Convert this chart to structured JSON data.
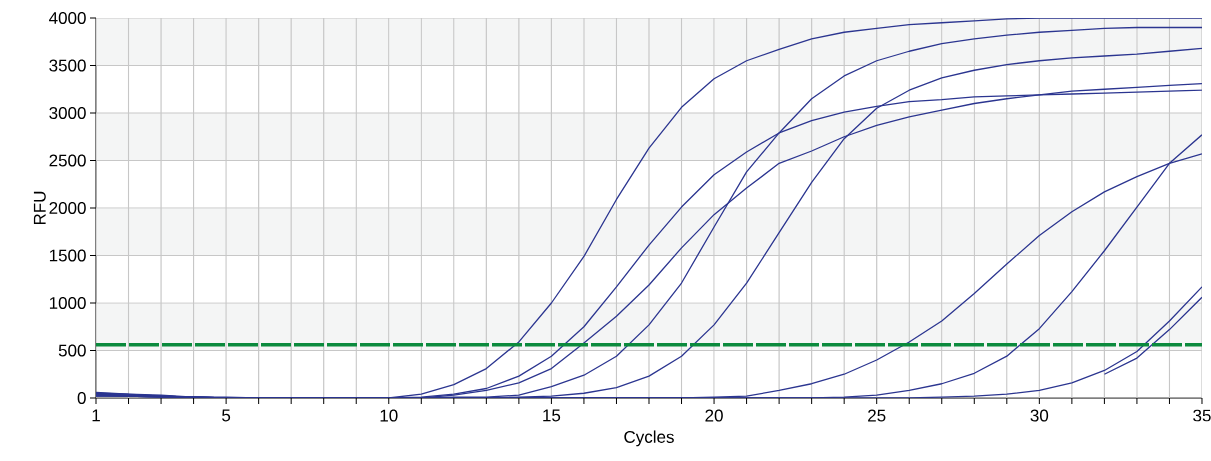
{
  "chart_data": {
    "type": "line",
    "xlabel": "Cycles",
    "ylabel": "RFU",
    "x": [
      1,
      2,
      3,
      4,
      5,
      6,
      7,
      8,
      9,
      10,
      11,
      12,
      13,
      14,
      15,
      16,
      17,
      18,
      19,
      20,
      21,
      22,
      23,
      24,
      25,
      26,
      27,
      28,
      29,
      30,
      31,
      32,
      33,
      34,
      35
    ],
    "xlim": [
      1,
      35
    ],
    "ylim": [
      0,
      4000
    ],
    "xticks": [
      1,
      {
        "value": 2,
        "label": null
      },
      {
        "value": 3,
        "label": null
      },
      {
        "value": 4,
        "label": null
      },
      5,
      {
        "value": 6,
        "label": null
      },
      {
        "value": 7,
        "label": null
      },
      {
        "value": 8,
        "label": null
      },
      {
        "value": 9,
        "label": null
      },
      10,
      {
        "value": 11,
        "label": null
      },
      {
        "value": 12,
        "label": null
      },
      {
        "value": 13,
        "label": null
      },
      {
        "value": 14,
        "label": null
      },
      15,
      {
        "value": 16,
        "label": null
      },
      {
        "value": 17,
        "label": null
      },
      {
        "value": 18,
        "label": null
      },
      {
        "value": 19,
        "label": null
      },
      20,
      {
        "value": 21,
        "label": null
      },
      {
        "value": 22,
        "label": null
      },
      {
        "value": 23,
        "label": null
      },
      {
        "value": 24,
        "label": null
      },
      25,
      {
        "value": 26,
        "label": null
      },
      {
        "value": 27,
        "label": null
      },
      {
        "value": 28,
        "label": null
      },
      {
        "value": 29,
        "label": null
      },
      30,
      {
        "value": 31,
        "label": null
      },
      {
        "value": 32,
        "label": null
      },
      {
        "value": 33,
        "label": null
      },
      {
        "value": 34,
        "label": null
      },
      35
    ],
    "yticks": [
      0,
      500,
      1000,
      1500,
      2000,
      2500,
      3000,
      3500,
      4000
    ],
    "grid": true,
    "legend": false,
    "marker": "none",
    "line_style": "solid",
    "ref_lines": [
      {
        "axis": "y",
        "value": 560,
        "color": "#0b8a3d",
        "line_style": "dashed"
      }
    ],
    "bands": [
      {
        "axis": "y",
        "from": 500,
        "to": 1000,
        "color": "#f4f5f5"
      },
      {
        "axis": "y",
        "from": 1500,
        "to": 2000,
        "color": "#f4f5f5"
      },
      {
        "axis": "y",
        "from": 2500,
        "to": 3000,
        "color": "#f4f5f5"
      },
      {
        "axis": "y",
        "from": 3500,
        "to": 4000,
        "color": "#f4f5f5"
      }
    ],
    "series": [
      {
        "color": "#2b3590",
        "values": [
          50,
          40,
          20,
          10,
          0,
          0,
          0,
          0,
          0,
          0,
          40,
          140,
          310,
          590,
          1000,
          1490,
          2090,
          2630,
          3060,
          3360,
          3550,
          3670,
          3780,
          3850,
          3890,
          3930,
          3950,
          3970,
          3990,
          4000,
          4000,
          4000,
          4000,
          4000,
          4000
        ]
      },
      {
        "color": "#2b3590",
        "values": [
          40,
          30,
          20,
          10,
          0,
          0,
          0,
          0,
          0,
          0,
          10,
          40,
          100,
          230,
          440,
          750,
          1170,
          1610,
          2010,
          2350,
          2590,
          2790,
          2920,
          3010,
          3070,
          3120,
          3140,
          3170,
          3180,
          3190,
          3200,
          3210,
          3220,
          3230,
          3240
        ]
      },
      {
        "color": "#2b3590",
        "values": [
          30,
          20,
          10,
          10,
          0,
          0,
          0,
          0,
          0,
          0,
          0,
          30,
          80,
          160,
          310,
          580,
          860,
          1190,
          1580,
          1930,
          2210,
          2470,
          2600,
          2750,
          2870,
          2960,
          3030,
          3100,
          3150,
          3190,
          3230,
          3250,
          3270,
          3290,
          3310
        ]
      },
      {
        "color": "#2b3590",
        "values": [
          40,
          30,
          20,
          10,
          0,
          0,
          0,
          0,
          0,
          0,
          0,
          10,
          10,
          30,
          120,
          240,
          440,
          770,
          1210,
          1800,
          2380,
          2790,
          3150,
          3390,
          3550,
          3650,
          3730,
          3780,
          3820,
          3850,
          3870,
          3890,
          3900,
          3900,
          3900
        ]
      },
      {
        "color": "#2b3590",
        "values": [
          20,
          20,
          10,
          10,
          0,
          0,
          0,
          0,
          0,
          0,
          0,
          0,
          0,
          10,
          20,
          50,
          110,
          230,
          440,
          770,
          1210,
          1740,
          2270,
          2730,
          3050,
          3240,
          3370,
          3450,
          3510,
          3550,
          3580,
          3600,
          3620,
          3650,
          3680
        ]
      },
      {
        "color": "#2b3590",
        "values": [
          30,
          20,
          20,
          10,
          0,
          0,
          0,
          0,
          0,
          0,
          0,
          0,
          0,
          0,
          0,
          0,
          0,
          0,
          0,
          10,
          20,
          80,
          150,
          250,
          400,
          590,
          810,
          1100,
          1410,
          1710,
          1960,
          2170,
          2330,
          2470,
          2570
        ]
      },
      {
        "color": "#2b3590",
        "values": [
          60,
          40,
          30,
          10,
          10,
          0,
          0,
          0,
          0,
          0,
          0,
          0,
          0,
          0,
          0,
          0,
          0,
          0,
          0,
          0,
          0,
          0,
          0,
          10,
          30,
          80,
          150,
          260,
          440,
          730,
          1120,
          1550,
          2010,
          2470,
          2770
        ]
      },
      {
        "color": "#2b3590",
        "values": [
          20,
          20,
          10,
          10,
          0,
          0,
          0,
          0,
          0,
          0,
          0,
          0,
          0,
          0,
          0,
          0,
          0,
          0,
          0,
          0,
          0,
          0,
          0,
          0,
          0,
          0,
          10,
          20,
          40,
          80,
          160,
          290,
          490,
          810,
          1170
        ]
      },
      {
        "color": "#2b3590",
        "values": [
          null,
          null,
          null,
          null,
          null,
          null,
          null,
          null,
          null,
          null,
          null,
          null,
          null,
          null,
          null,
          null,
          null,
          null,
          null,
          null,
          null,
          null,
          null,
          null,
          null,
          null,
          null,
          null,
          null,
          null,
          null,
          250,
          420,
          720,
          1060
        ]
      }
    ]
  }
}
